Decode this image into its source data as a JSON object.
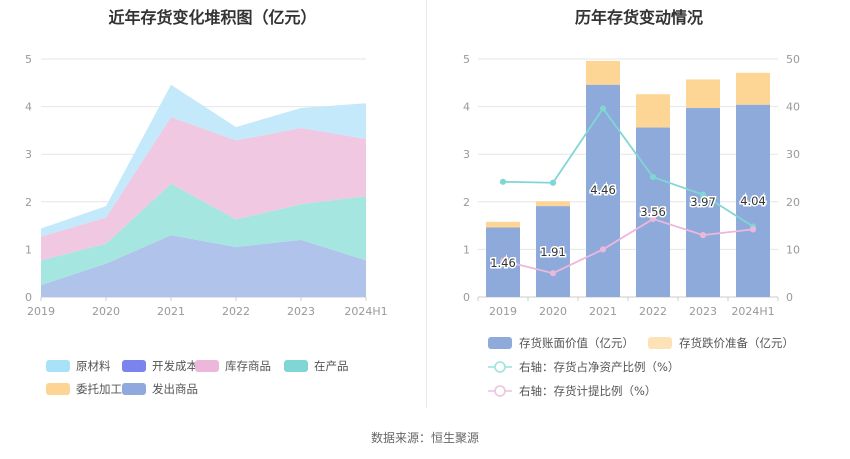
{
  "chart_data": [
    {
      "type": "area",
      "stacked": true,
      "title": "近年存货变化堆积图（亿元）",
      "categories": [
        "2019",
        "2020",
        "2021",
        "2022",
        "2023",
        "2024H1"
      ],
      "ylim": [
        0,
        5
      ],
      "yticks": [
        "0",
        "1",
        "2",
        "3",
        "4",
        "5"
      ],
      "grid": true,
      "series": [
        {
          "name": "原材料",
          "color": "#c3e9fa",
          "values": [
            0.17,
            0.24,
            0.68,
            0.28,
            0.42,
            0.75
          ]
        },
        {
          "name": "开发成本",
          "color": "#7b83ef",
          "values": [
            0,
            0,
            0,
            0,
            0,
            0
          ]
        },
        {
          "name": "库存商品",
          "color": "#f0c8e2",
          "values": [
            0.5,
            0.55,
            1.4,
            1.66,
            1.6,
            1.2
          ]
        },
        {
          "name": "在产品",
          "color": "#a6e6e0",
          "values": [
            0.52,
            0.42,
            1.08,
            0.58,
            0.75,
            1.35
          ]
        },
        {
          "name": "委托加工材料",
          "color": "#fdd493",
          "values": [
            0,
            0,
            0,
            0,
            0,
            0
          ]
        },
        {
          "name": "发出商品",
          "color": "#b0c3ea",
          "values": [
            0.25,
            0.7,
            1.3,
            1.05,
            1.2,
            0.77
          ]
        }
      ],
      "legend": [
        {
          "label": "原材料",
          "color": "#a9e1f9"
        },
        {
          "label": "开发成本",
          "color": "#7b83ef"
        },
        {
          "label": "库存商品",
          "color": "#edb7dc"
        },
        {
          "label": "在产品",
          "color": "#7fd6d4"
        },
        {
          "label": "委托加工材料",
          "color": "#fdd493"
        },
        {
          "label": "发出商品",
          "color": "#8fa9dd"
        }
      ]
    },
    {
      "type": "bar",
      "title": "历年存货变动情况",
      "categories": [
        "2019",
        "2020",
        "2021",
        "2022",
        "2023",
        "2024H1"
      ],
      "ylim": [
        0,
        5
      ],
      "yticks": [
        "0",
        "1",
        "2",
        "3",
        "4",
        "5"
      ],
      "y2lim": [
        0,
        50
      ],
      "y2ticks": [
        "0",
        "10",
        "20",
        "30",
        "40",
        "50"
      ],
      "series": [
        {
          "name": "存货账面价值（亿元）",
          "kind": "bar",
          "color": "#8eaadb",
          "values": [
            1.46,
            1.91,
            4.46,
            3.56,
            3.97,
            4.04
          ],
          "labels": [
            "1.46",
            "1.91",
            "4.46",
            "3.56",
            "3.97",
            "4.04"
          ]
        },
        {
          "name": "存货跌价准备（亿元）",
          "kind": "bar",
          "color": "#fdd594",
          "values": [
            0.12,
            0.1,
            0.5,
            0.7,
            0.6,
            0.67
          ]
        },
        {
          "name": "右轴：存货占净资产比例（%）",
          "kind": "line",
          "axis": "right",
          "color": "#7fd6d4",
          "values": [
            24.2,
            24.0,
            39.6,
            25.2,
            21.5,
            14.8
          ]
        },
        {
          "name": "右轴：存货计提比例（%）",
          "kind": "line",
          "axis": "right",
          "color": "#edb7dc",
          "values": [
            7.6,
            5.0,
            10.0,
            16.4,
            13.0,
            14.2
          ]
        }
      ],
      "legend": [
        {
          "label": "存货账面价值（亿元）",
          "color": "#8eaadb",
          "kind": "box"
        },
        {
          "label": "存货跌价准备（亿元）",
          "color": "#fde2b8",
          "kind": "box"
        },
        {
          "label": "右轴：存货占净资产比例（%）",
          "color": "#a6e6e0",
          "kind": "line"
        },
        {
          "label": "右轴：存货计提比例（%）",
          "color": "#f0c8e2",
          "kind": "line"
        }
      ]
    }
  ],
  "footer": {
    "source": "数据来源：恒生聚源"
  }
}
